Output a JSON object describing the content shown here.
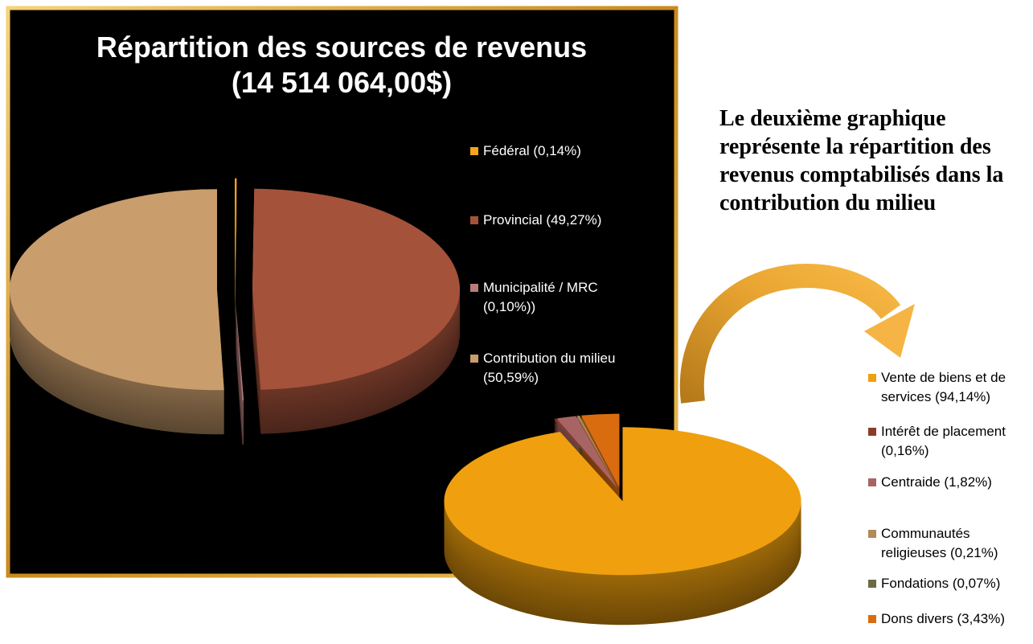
{
  "chart_data": [
    {
      "type": "pie",
      "title": [
        "Répartition des sources de revenus",
        "(14 514 064,00$)"
      ],
      "categories": [
        "Fédéral (0,14%)",
        "Provincial (49,27%)",
        "Municipalité / MRC (0,10%))",
        "Contribution du milieu (50,59%)"
      ],
      "values": [
        0.14,
        49.27,
        0.1,
        50.59
      ],
      "colors": [
        "#f2a51c",
        "#a5523b",
        "#b77d7d",
        "#c99d6c"
      ]
    },
    {
      "type": "pie",
      "annotation": [
        "Le deuxième graphique",
        "représente la répartition des",
        "revenus comptabilisés dans la",
        "contribution du milieu"
      ],
      "categories": [
        "Vente de biens et de services (94,14%)",
        "Intérêt de placement (0,16%)",
        "Centraide (1,82%)",
        "Communautés religieuses (0,21%)",
        "Fondations (0,07%)",
        "Dons divers (3,43%)"
      ],
      "values": [
        94.14,
        0.16,
        1.82,
        0.21,
        0.07,
        3.43
      ],
      "colors": [
        "#f0a00e",
        "#8c3b2b",
        "#a86464",
        "#b38a58",
        "#6d6b42",
        "#da6c10"
      ]
    }
  ]
}
